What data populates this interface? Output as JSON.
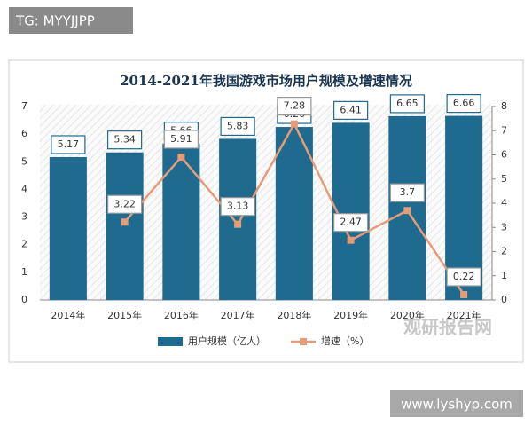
{
  "overlays": {
    "top_left": "TG: MYYJJPP",
    "bottom_right": "www.lyshyp.com",
    "watermark": "观研报告网"
  },
  "chart_data": {
    "type": "bar",
    "title": "2014-2021年我国游戏市场用户规模及增速情况",
    "categories": [
      "2014年",
      "2015年",
      "2016年",
      "2017年",
      "2018年",
      "2019年",
      "2020年",
      "2021年"
    ],
    "series": [
      {
        "name": "用户规模（亿人）",
        "type": "bar",
        "color": "#1f6a8f",
        "values": [
          5.17,
          5.34,
          5.66,
          5.83,
          6.26,
          6.41,
          6.65,
          6.66
        ]
      },
      {
        "name": "增速（%）",
        "type": "line",
        "axis": "y2",
        "color": "#e59c78",
        "values": [
          null,
          3.22,
          5.91,
          3.13,
          7.28,
          2.47,
          3.7,
          0.22
        ]
      }
    ],
    "ylim": [
      0,
      7
    ],
    "yticks": [
      0,
      1,
      2,
      3,
      4,
      5,
      6,
      7
    ],
    "y2lim": [
      0,
      8
    ],
    "y2ticks": [
      0,
      1,
      2,
      3,
      4,
      5,
      6,
      7,
      8
    ],
    "legend": "bottom"
  }
}
